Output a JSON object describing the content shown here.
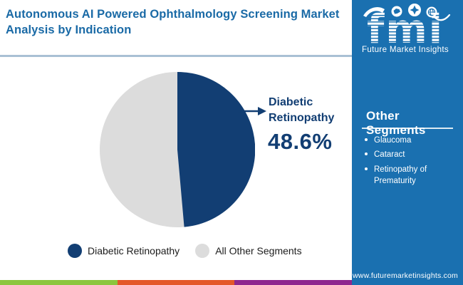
{
  "header": {
    "title": "Autonomous AI Powered Ophthalmology Screening Market Analysis by Indication",
    "logo": {
      "brand": "fmi",
      "tagline": "Future Market Insights"
    }
  },
  "chart_data": {
    "type": "pie",
    "title": "Autonomous AI Powered Ophthalmology Screening Market Analysis by Indication",
    "slices": [
      {
        "label": "Diabetic Retinopathy",
        "value": 48.6,
        "color": "#123e73"
      },
      {
        "label": "All Other Segments",
        "value": 51.4,
        "color": "#dcdcdc"
      }
    ],
    "start_angle_deg": 0,
    "direction": "clockwise",
    "legend_position": "bottom",
    "annotation": {
      "label": "Diabetic Retinopathy",
      "value_label": "48.6%"
    }
  },
  "annotation": {
    "label": "Diabetic Retinopathy",
    "value": "48.6%"
  },
  "sidebar": {
    "heading": "Other Segments",
    "items": [
      "Glaucoma",
      "Cataract",
      "Retinopathy of Prematurity"
    ],
    "website": "www.futuremarketinsights.com"
  },
  "footer": {
    "stripe_colors": [
      "#8cc63e",
      "#e4582a",
      "#8e278f"
    ]
  },
  "colors": {
    "title_blue": "#1a6aa6",
    "sidebar_blue": "#1a70b0",
    "pie_navy": "#123e73",
    "pie_gray": "#dcdcdc",
    "header_divider": "#a9c0d4",
    "annotation_navy": "#123e73"
  }
}
